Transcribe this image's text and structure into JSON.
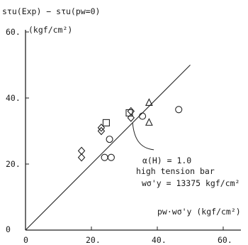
{
  "chart_data": {
    "type": "scatter",
    "ylabel": "sτu(Exp) − sτu(pw=0)",
    "ylabel_unit": "(kgf/cm²)",
    "xlabel": "pw·wσ'y (kgf/cm²)",
    "xlim": [
      0,
      62
    ],
    "ylim": [
      0,
      62
    ],
    "x_ticks": [
      "0",
      "20.",
      "40.",
      "60."
    ],
    "y_ticks": [
      "0",
      "20.",
      "40.",
      "60."
    ],
    "line": {
      "x": [
        0,
        50
      ],
      "y": [
        0,
        50
      ]
    },
    "annotation": {
      "lines": [
        "α(H) = 1.0",
        "high tension bar",
        "wσ'y = 13375  kgf/cm²"
      ],
      "point": [
        32.5,
        32.5
      ]
    },
    "series": [
      {
        "marker": "diamond",
        "points": [
          [
            17,
            22
          ],
          [
            17,
            24
          ],
          [
            23,
            30
          ],
          [
            23,
            31
          ],
          [
            32,
            34
          ],
          [
            32,
            36
          ]
        ]
      },
      {
        "marker": "square",
        "points": [
          [
            24.5,
            32.5
          ],
          [
            31.5,
            35.5
          ]
        ]
      },
      {
        "marker": "circle",
        "points": [
          [
            24,
            22
          ],
          [
            26,
            22
          ],
          [
            25.5,
            27.5
          ],
          [
            35.5,
            34.5
          ],
          [
            46.5,
            36.5
          ]
        ]
      },
      {
        "marker": "triangle",
        "points": [
          [
            37.5,
            38.5
          ],
          [
            37.5,
            32.5
          ]
        ]
      }
    ]
  }
}
